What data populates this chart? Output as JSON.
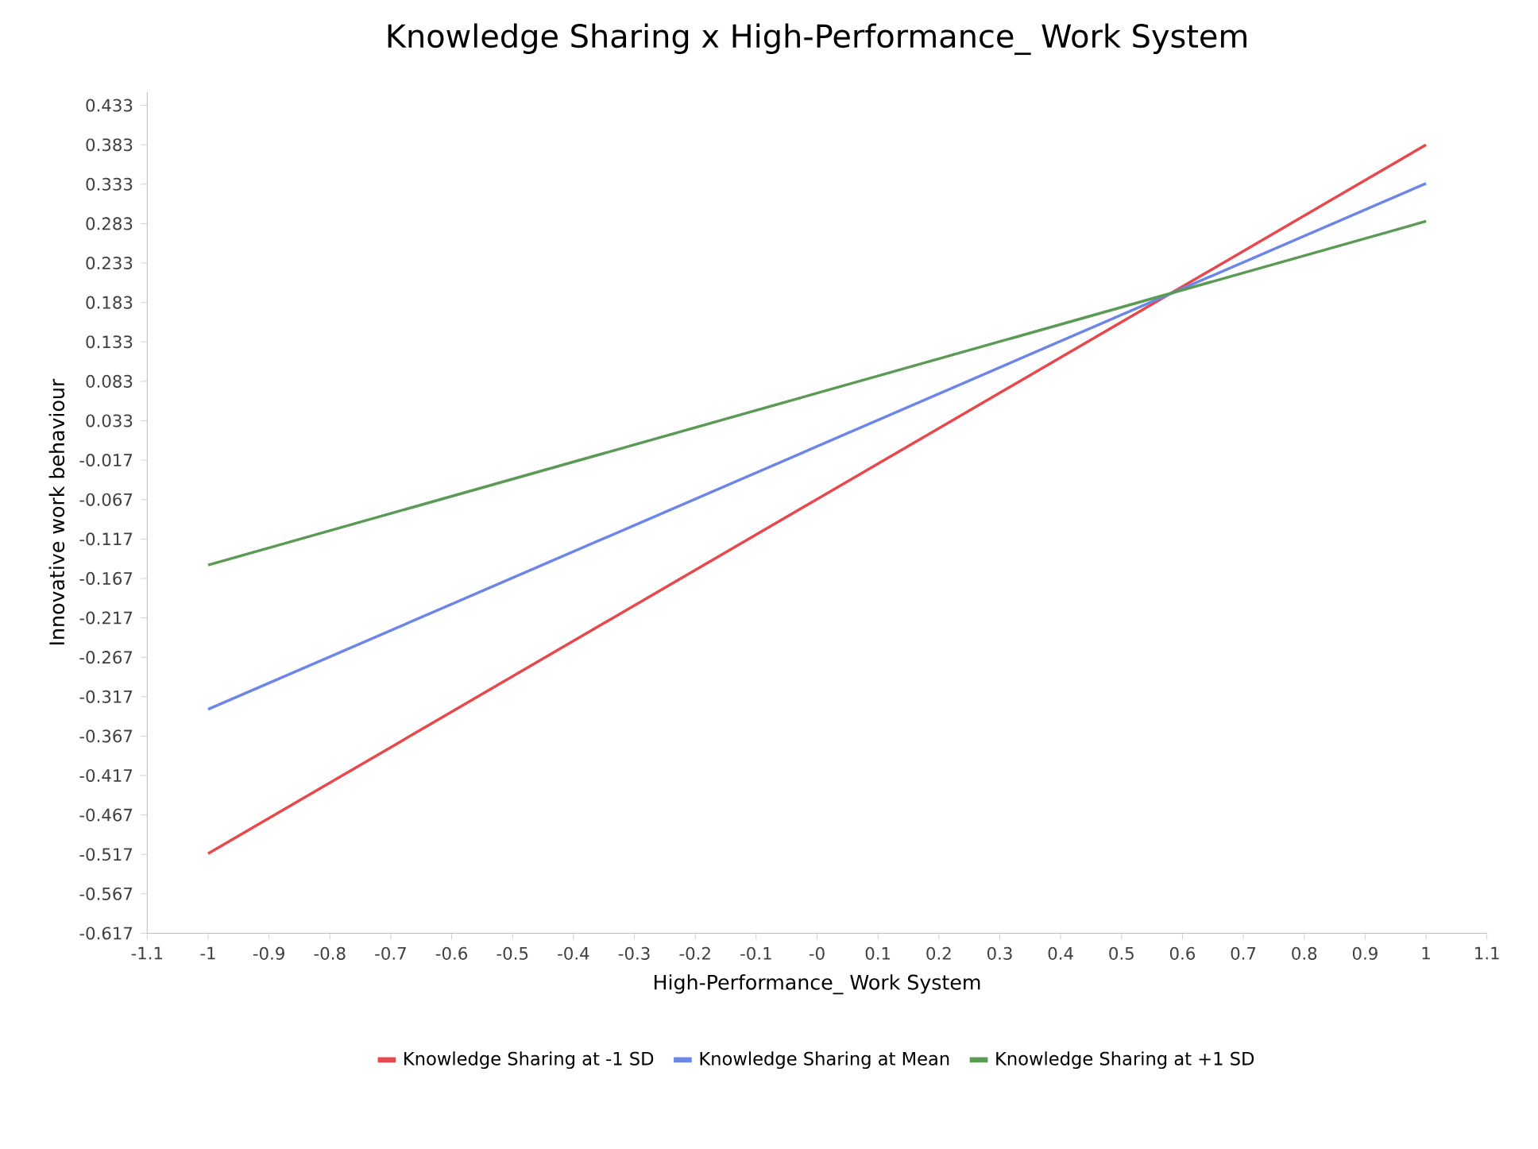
{
  "chart_data": {
    "type": "line",
    "title": "Knowledge Sharing x High-Performance_ Work System",
    "xlabel": "High-Performance_ Work System",
    "ylabel": "Innovative work behaviour",
    "x": [
      -1,
      1
    ],
    "series": [
      {
        "name": "Knowledge Sharing at -1 SD",
        "color": "#e8474b",
        "values": [
          -0.516,
          0.383
        ]
      },
      {
        "name": "Knowledge Sharing at Mean",
        "color": "#6b85e8",
        "values": [
          -0.333,
          0.334
        ]
      },
      {
        "name": "Knowledge Sharing at +1 SD",
        "color": "#5a9a55",
        "values": [
          -0.15,
          0.286
        ]
      }
    ],
    "xlim": [
      -1.1,
      1.1
    ],
    "xticks": [
      -1.1,
      -1,
      -0.9,
      -0.8,
      -0.7,
      -0.6,
      -0.5,
      -0.4,
      -0.3,
      -0.2,
      -0.1,
      {
        "value": 0,
        "label": "-0"
      },
      0.1,
      0.2,
      0.3,
      0.4,
      0.5,
      0.6,
      0.7,
      0.8,
      0.9,
      1,
      1.1
    ],
    "ylim": [
      -0.617,
      0.45
    ],
    "yticks": [
      -0.617,
      -0.567,
      -0.517,
      -0.467,
      -0.417,
      -0.367,
      -0.317,
      -0.267,
      -0.217,
      -0.167,
      -0.117,
      -0.067,
      -0.017,
      0.033,
      0.083,
      0.133,
      0.183,
      0.233,
      0.283,
      0.333,
      0.383,
      0.433
    ],
    "legend": "bottom",
    "grid": false,
    "marker": "none",
    "line_style": "solid"
  }
}
